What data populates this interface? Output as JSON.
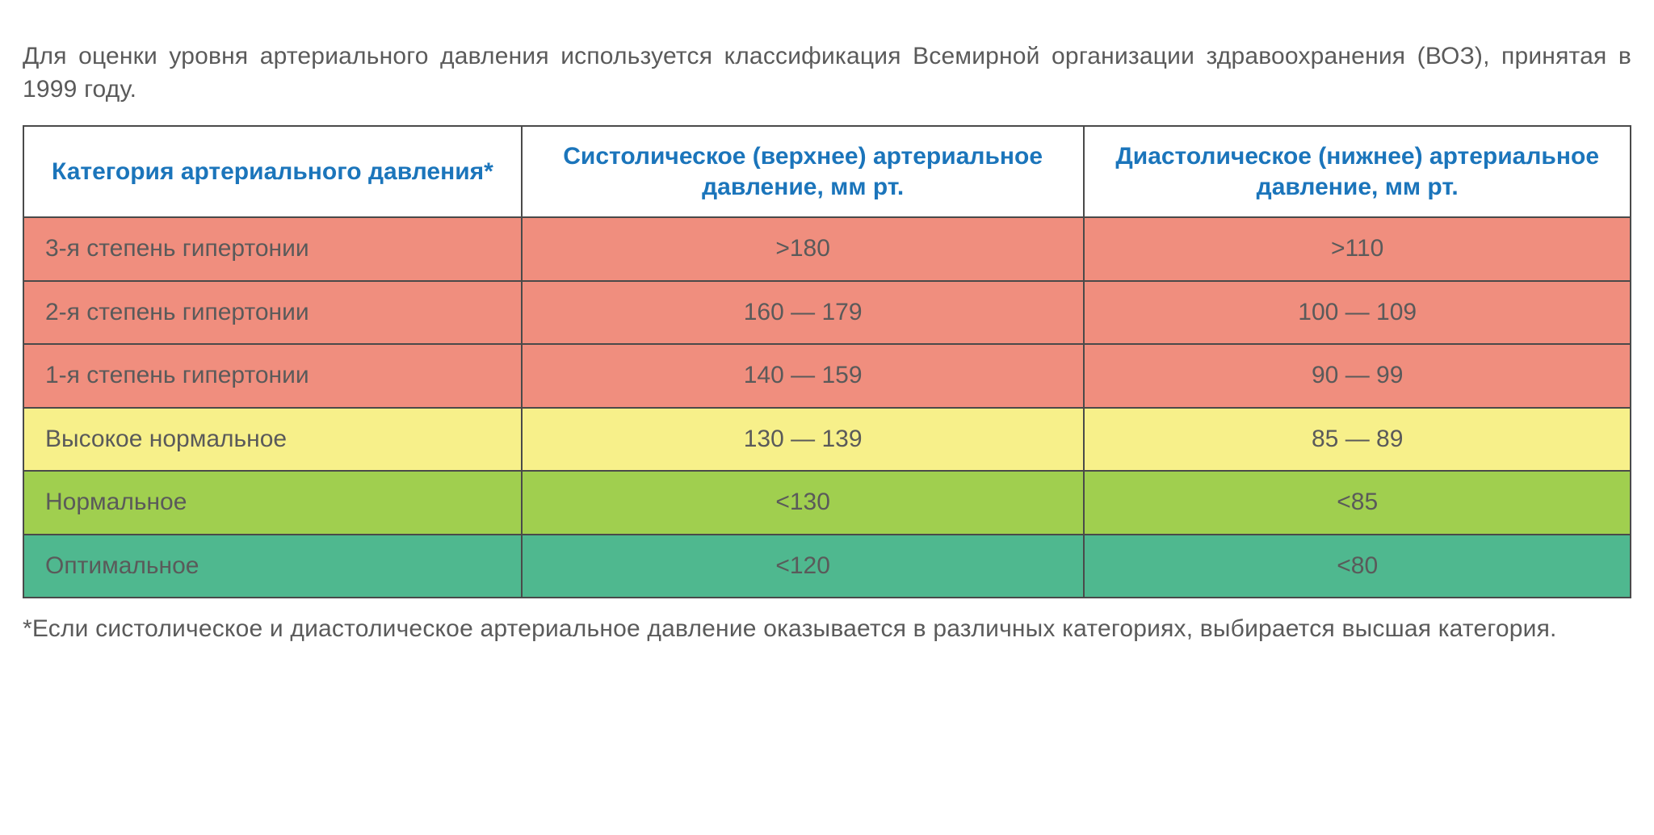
{
  "text": {
    "intro": "Для оценки уровня артериального давления используется классификация Всемирной организации здравоохранения (ВОЗ), принятая в 1999 году.",
    "footnote": "*Если систолическое и диастолическое артериальное давление оказывается в различных категориях, выбирается высшая категория."
  },
  "table": {
    "type": "table",
    "border_color": "#4a4a4a",
    "header_background": "#ffffff",
    "header_text_color": "#1b75bb",
    "header_fontsize": 30,
    "cell_fontsize": 30,
    "body_text_color": "#5a5a5a",
    "column_widths_pct": [
      31,
      35,
      34
    ],
    "columns": [
      "Категория артериального давления*",
      "Систолическое (верхнее) артериальное давление, мм рт.",
      "Диастолическое (нижнее) артериальное давление, мм рт."
    ],
    "rows": [
      {
        "bg": "#f08e7e",
        "cells": [
          "3-я степень гипертонии",
          ">180",
          ">110"
        ]
      },
      {
        "bg": "#f08e7e",
        "cells": [
          "2-я степень гипертонии",
          "160 — 179",
          "100 — 109"
        ]
      },
      {
        "bg": "#f08e7e",
        "cells": [
          "1-я степень гипертонии",
          "140 — 159",
          "90 — 99"
        ]
      },
      {
        "bg": "#f7f08a",
        "cells": [
          "Высокое нормальное",
          "130 — 139",
          "85 — 89"
        ]
      },
      {
        "bg": "#a0cf4f",
        "cells": [
          "Нормальное",
          "<130",
          "<85"
        ]
      },
      {
        "bg": "#4fb88f",
        "cells": [
          "Оптимальное",
          "<120",
          "<80"
        ]
      }
    ]
  }
}
